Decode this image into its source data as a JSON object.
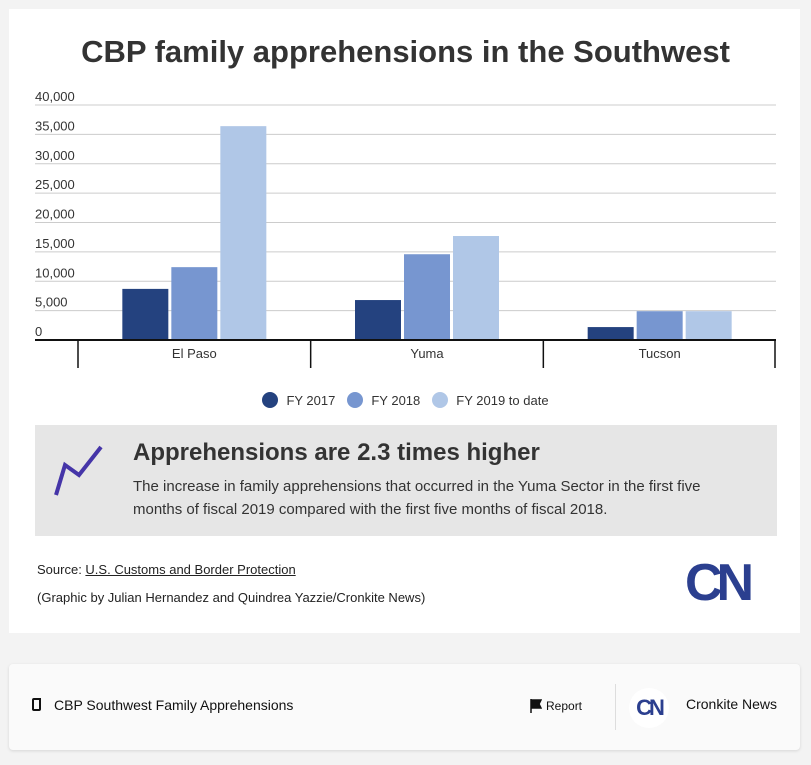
{
  "chart_data": {
    "type": "bar",
    "title": "CBP family apprehensions in the Southwest",
    "categories": [
      "El Paso",
      "Yuma",
      "Tucson"
    ],
    "series": [
      {
        "name": "FY 2017",
        "color": "#24427f",
        "values": [
          8700,
          6800,
          2200
        ]
      },
      {
        "name": "FY 2018",
        "color": "#7796d0",
        "values": [
          12400,
          14600,
          4900
        ]
      },
      {
        "name": "FY 2019 to date",
        "color": "#b0c7e7",
        "values": [
          36400,
          17700,
          4900
        ]
      }
    ],
    "ylim": [
      0,
      40000
    ],
    "yticks": [
      "0",
      "5,000",
      "10,000",
      "15,000",
      "20,000",
      "25,000",
      "30,000",
      "35,000",
      "40,000"
    ],
    "grid": true,
    "legend": "bottom"
  },
  "callout": {
    "icon": "trend-line-icon",
    "heading": "Apprehensions are 2.3 times higher",
    "text": "The increase in family apprehensions that occurred in the Yuma Sector in the first five months of fiscal 2019 compared with the first five months of fiscal 2018."
  },
  "source": {
    "label": "Source: ",
    "link": "U.S. Customs and Border Protection"
  },
  "credit": "(Graphic by Julian Hernandez and Quindrea Yazzie/Cronkite News)",
  "logo": "CN",
  "footer": {
    "title": "CBP Southwest Family Apprehensions",
    "report": "Report",
    "publisher": "Cronkite News",
    "publisher_logo": "CN"
  }
}
